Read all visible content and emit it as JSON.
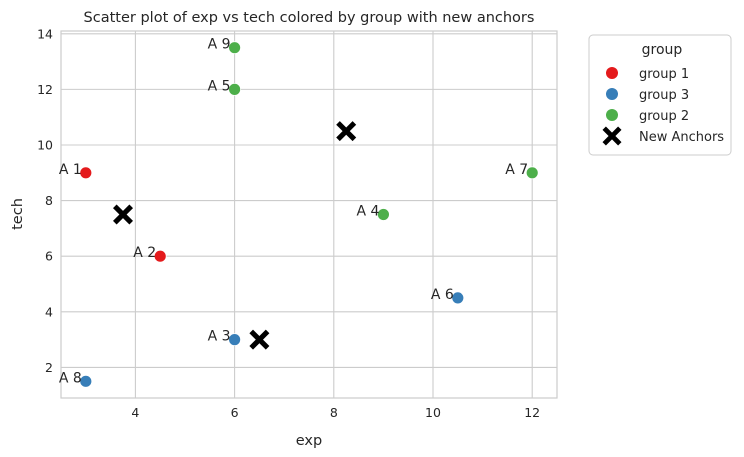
{
  "chart_data": {
    "type": "scatter",
    "title": "Scatter plot of exp vs tech colored by group with new anchors",
    "xlabel": "exp",
    "ylabel": "tech",
    "xlim": [
      2.5,
      12.5
    ],
    "ylim": [
      0.9,
      14.1
    ],
    "xticks": [
      4,
      6,
      8,
      10,
      12
    ],
    "yticks": [
      2,
      4,
      6,
      8,
      10,
      12,
      14
    ],
    "grid": true,
    "legend": {
      "title": "group",
      "placement": "outside-top-right",
      "entries": [
        {
          "label": "group 1",
          "color": "#e41a1c",
          "marker": "circle"
        },
        {
          "label": "group 3",
          "color": "#377eb8",
          "marker": "circle"
        },
        {
          "label": "group 2",
          "color": "#4daf4a",
          "marker": "circle"
        },
        {
          "label": "New Anchors",
          "color": "#000000",
          "marker": "x"
        }
      ]
    },
    "series": [
      {
        "name": "group 1",
        "color": "#e41a1c",
        "points": [
          {
            "label": "A 1",
            "x": 3.0,
            "y": 9.0
          },
          {
            "label": "A 2",
            "x": 4.5,
            "y": 6.0
          }
        ]
      },
      {
        "name": "group 3",
        "color": "#377eb8",
        "points": [
          {
            "label": "A 3",
            "x": 6.0,
            "y": 3.0
          },
          {
            "label": "A 6",
            "x": 10.5,
            "y": 4.5
          },
          {
            "label": "A 8",
            "x": 3.0,
            "y": 1.5
          }
        ]
      },
      {
        "name": "group 2",
        "color": "#4daf4a",
        "points": [
          {
            "label": "A 9",
            "x": 6.0,
            "y": 13.5
          },
          {
            "label": "A 5",
            "x": 6.0,
            "y": 12.0
          },
          {
            "label": "A 7",
            "x": 12.0,
            "y": 9.0
          },
          {
            "label": "A 4",
            "x": 9.0,
            "y": 7.5
          }
        ]
      }
    ],
    "anchors": {
      "name": "New Anchors",
      "color": "#000000",
      "points": [
        {
          "x": 3.75,
          "y": 7.5
        },
        {
          "x": 8.25,
          "y": 10.5
        },
        {
          "x": 6.5,
          "y": 3.0
        }
      ]
    }
  }
}
